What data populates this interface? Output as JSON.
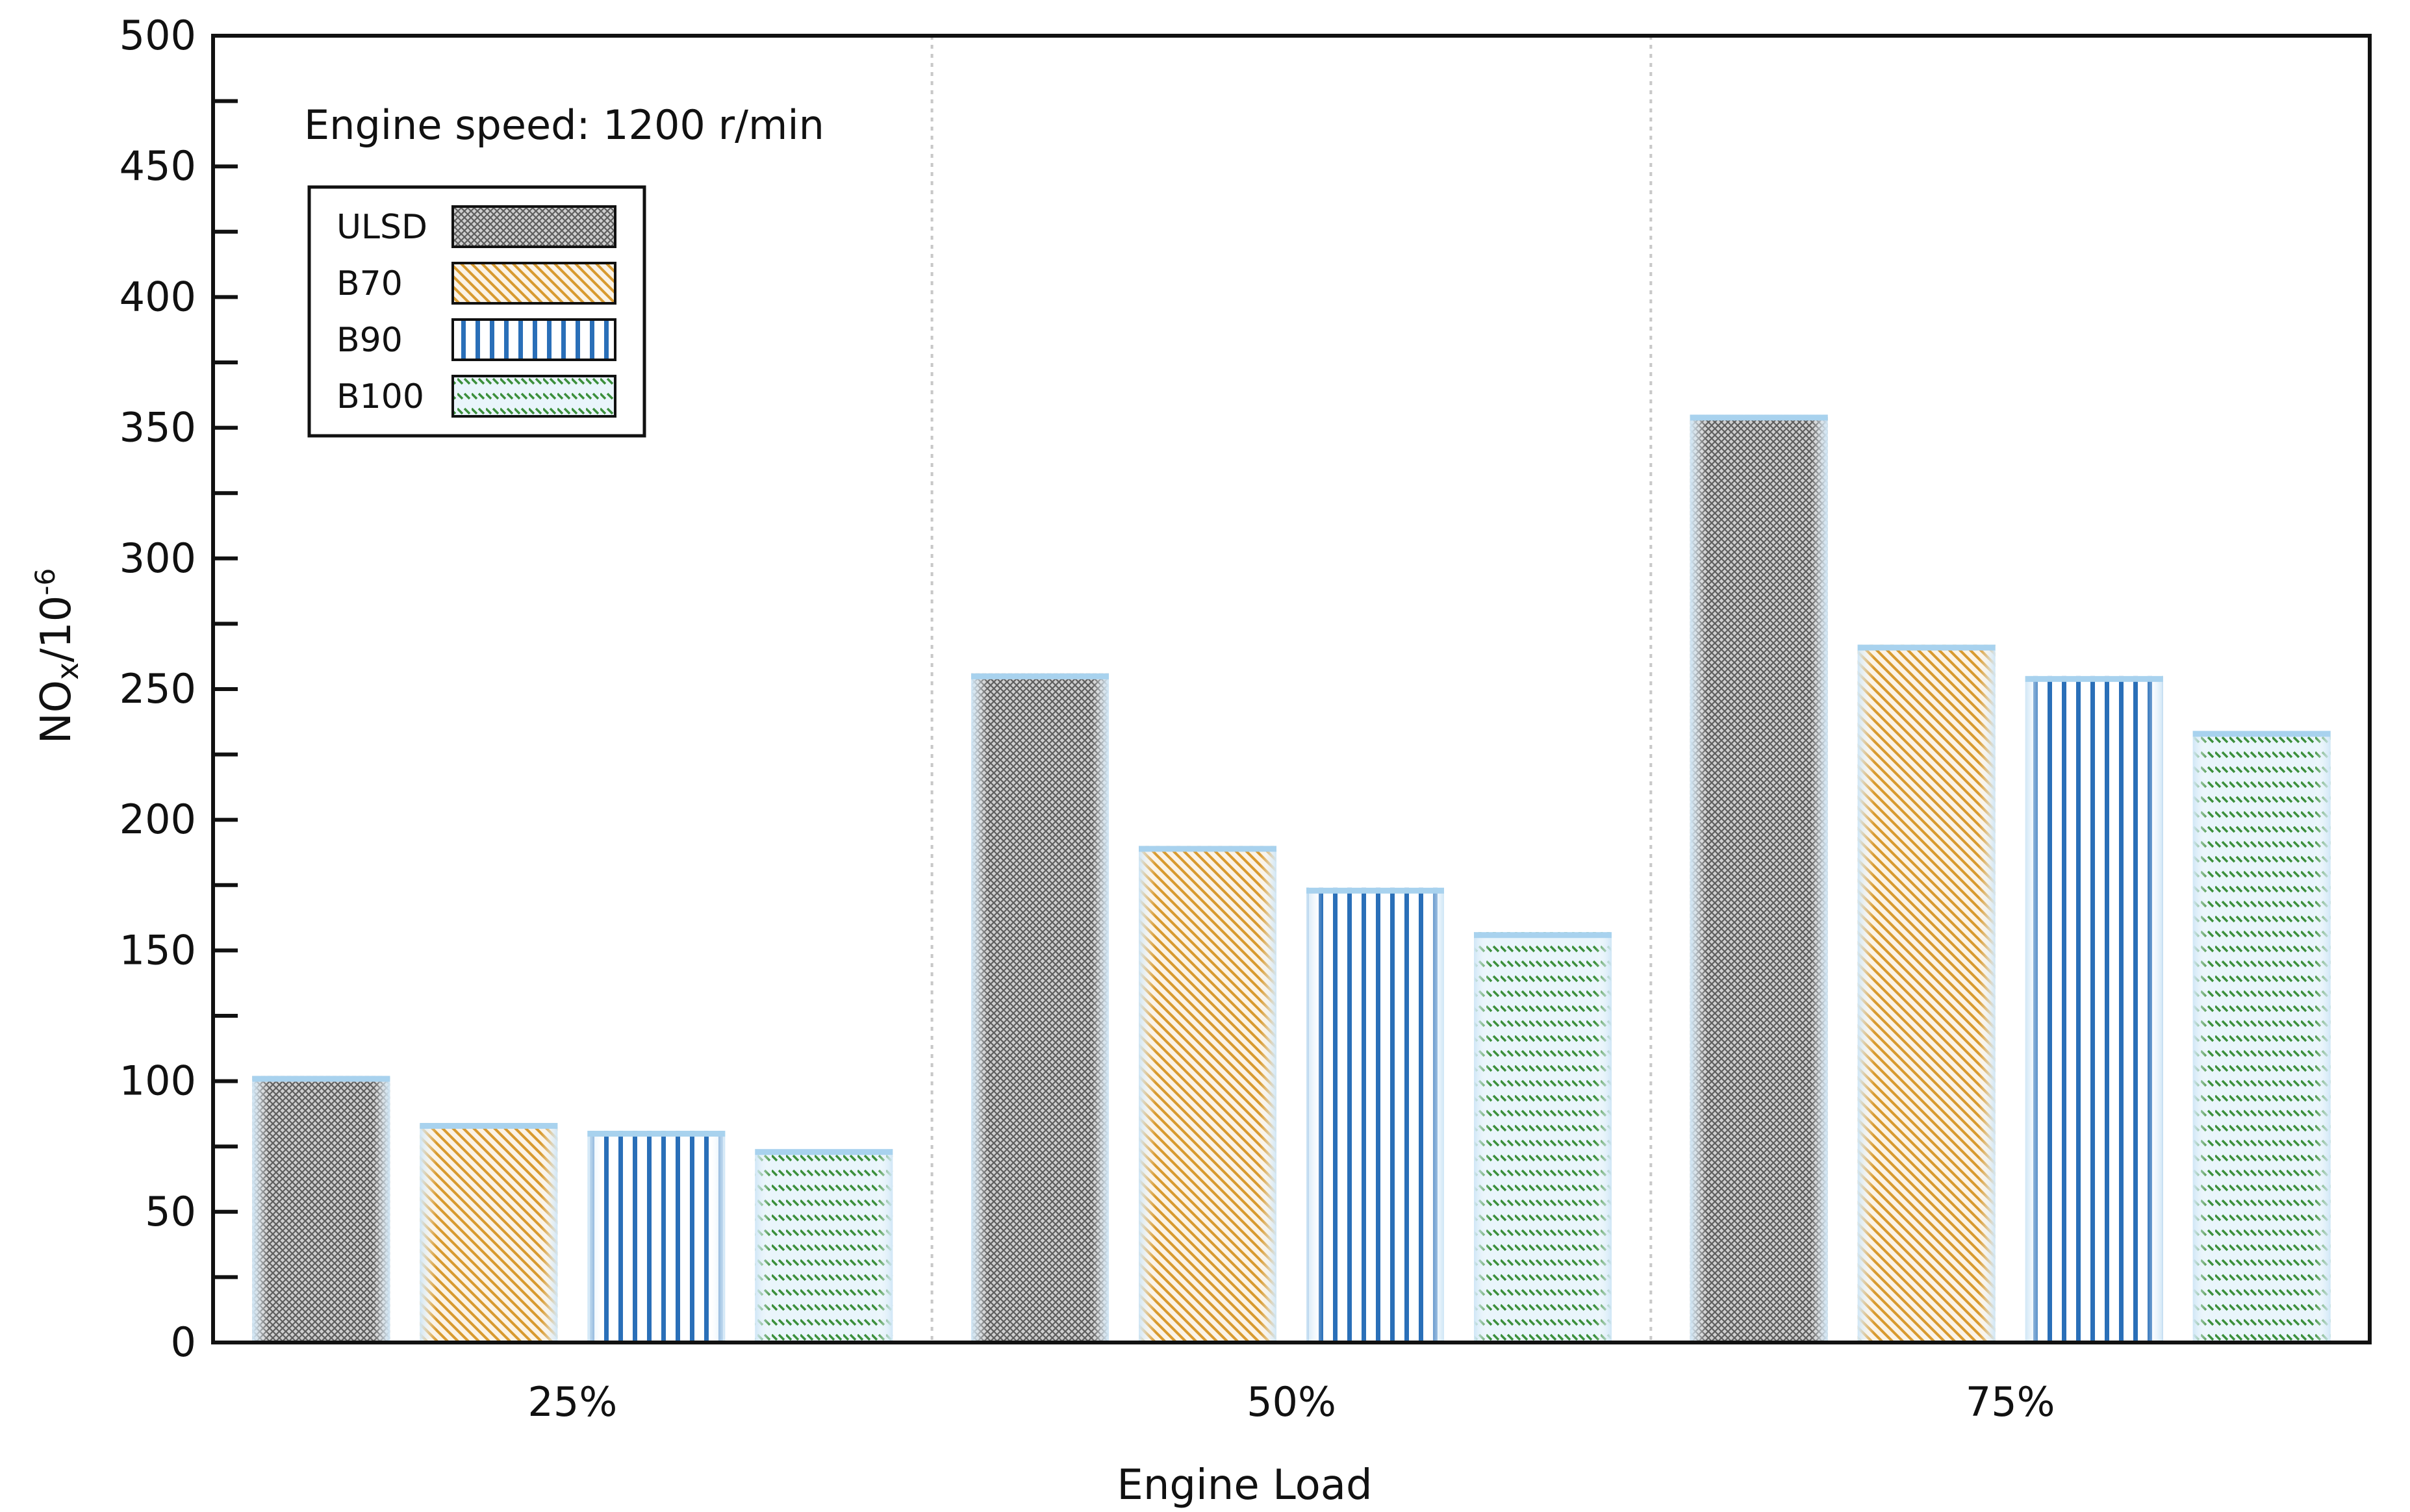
{
  "chart_data": {
    "type": "bar",
    "title": "",
    "annotation": "Engine speed: 1200  r/min",
    "xlabel": "Engine Load",
    "ylabel": "NOx/10⁻⁶",
    "ylabel_main": "NO",
    "ylabel_sub": "x",
    "ylabel_tail": "/10",
    "ylabel_exp": "-6",
    "categories": [
      "25%",
      "50%",
      "75%"
    ],
    "ylim": [
      0,
      500
    ],
    "yticks": [
      0,
      50,
      100,
      150,
      200,
      250,
      300,
      350,
      400,
      450,
      500
    ],
    "grid": false,
    "legend_position": "top-left",
    "series": [
      {
        "name": "ULSD",
        "values": [
          102,
          256,
          355
        ],
        "pattern": "crosshatch",
        "color": "#6f6f6f"
      },
      {
        "name": "B70",
        "values": [
          84,
          190,
          267
        ],
        "pattern": "diagonal",
        "color": "#e0a23a"
      },
      {
        "name": "B90",
        "values": [
          81,
          174,
          255
        ],
        "pattern": "vertical",
        "color": "#2a6fb8"
      },
      {
        "name": "B100",
        "values": [
          74,
          157,
          234
        ],
        "pattern": "dashes",
        "color": "#3b8f3b"
      }
    ],
    "bar_edge_color": "#a8d2ee"
  }
}
